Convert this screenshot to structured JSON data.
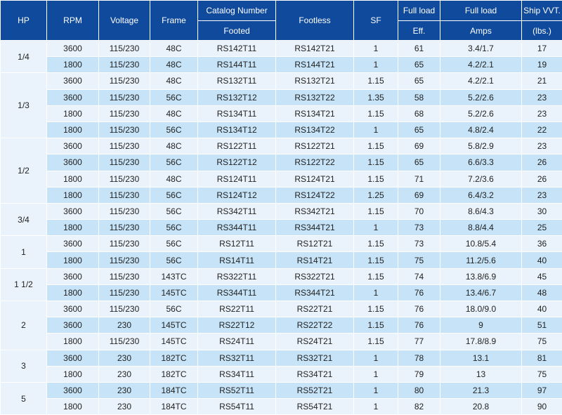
{
  "table": {
    "headers": {
      "hp": "HP",
      "rpm": "RPM",
      "voltage": "Voltage",
      "frame": "Frame",
      "catalog_top": "Catalog Number",
      "catalog_sub": "Footed",
      "footless": "Footless",
      "sf": "SF",
      "eff_top": "Full load",
      "eff_sub": "Eff.",
      "amps_top": "Full load",
      "amps_sub": "Amps",
      "ship_top": "Ship VVT.",
      "ship_sub": "(lbs.)"
    },
    "groups": [
      {
        "hp": "1/4",
        "rows": [
          [
            "3600",
            "115/230",
            "48C",
            "RS142T11",
            "RS142T21",
            "1",
            "61",
            "3.4/1.7",
            "17"
          ],
          [
            "1800",
            "115/230",
            "48C",
            "RS144T11",
            "RS144T21",
            "1",
            "65",
            "4.2/2.1",
            "19"
          ]
        ]
      },
      {
        "hp": "1/3",
        "rows": [
          [
            "3600",
            "115/230",
            "48C",
            "RS132T11",
            "RS132T21",
            "1.15",
            "65",
            "4.2/2.1",
            "21"
          ],
          [
            "3600",
            "115/230",
            "56C",
            "RS132T12",
            "RS132T22",
            "1.35",
            "58",
            "5.2/2.6",
            "23"
          ],
          [
            "1800",
            "115/230",
            "48C",
            "RS134T11",
            "RS134T21",
            "1.15",
            "68",
            "5.2/2.6",
            "23"
          ],
          [
            "1800",
            "115/230",
            "56C",
            "RS134T12",
            "RS134T22",
            "1",
            "65",
            "4.8/2.4",
            "22"
          ]
        ]
      },
      {
        "hp": "1/2",
        "rows": [
          [
            "3600",
            "115/230",
            "48C",
            "RS122T11",
            "RS122T21",
            "1.15",
            "69",
            "5.8/2.9",
            "23"
          ],
          [
            "3600",
            "115/230",
            "56C",
            "RS122T12",
            "RS122T22",
            "1.15",
            "65",
            "6.6/3.3",
            "26"
          ],
          [
            "1800",
            "115/230",
            "48C",
            "RS124T11",
            "RS124T21",
            "1.15",
            "71",
            "7.2/3.6",
            "26"
          ],
          [
            "1800",
            "115/230",
            "56C",
            "RS124T12",
            "RS124T22",
            "1.25",
            "69",
            "6.4/3.2",
            "23"
          ]
        ]
      },
      {
        "hp": "3/4",
        "rows": [
          [
            "3600",
            "115/230",
            "56C",
            "RS342T11",
            "RS342T21",
            "1.15",
            "70",
            "8.6/4.3",
            "30"
          ],
          [
            "1800",
            "115/230",
            "56C",
            "RS344T11",
            "RS344T21",
            "1",
            "73",
            "8.8/4.4",
            "25"
          ]
        ]
      },
      {
        "hp": "1",
        "rows": [
          [
            "3600",
            "115/230",
            "56C",
            "RS12T11",
            "RS12T21",
            "1.15",
            "73",
            "10.8/5.4",
            "36"
          ],
          [
            "1800",
            "115/230",
            "56C",
            "RS14T11",
            "RS14T21",
            "1.15",
            "75",
            "11.2/5.6",
            "40"
          ]
        ]
      },
      {
        "hp": "1 1/2",
        "rows": [
          [
            "3600",
            "115/230",
            "143TC",
            "RS322T11",
            "RS322T21",
            "1.15",
            "74",
            "13.8/6.9",
            "45"
          ],
          [
            "1800",
            "115/230",
            "145TC",
            "RS344T11",
            "RS344T21",
            "1",
            "76",
            "13.4/6.7",
            "48"
          ]
        ]
      },
      {
        "hp": "2",
        "rows": [
          [
            "3600",
            "115/230",
            "56C",
            "RS22T11",
            "RS22T21",
            "1.15",
            "76",
            "18.0/9.0",
            "40"
          ],
          [
            "3600",
            "230",
            "145TC",
            "RS22T12",
            "RS22T22",
            "1.15",
            "76",
            "9",
            "51"
          ],
          [
            "1800",
            "115/230",
            "145TC",
            "RS24T11",
            "RS24T21",
            "1.15",
            "77",
            "17.8/8.9",
            "75"
          ]
        ]
      },
      {
        "hp": "3",
        "rows": [
          [
            "3600",
            "230",
            "182TC",
            "RS32T11",
            "RS32T21",
            "1",
            "78",
            "13.1",
            "81"
          ],
          [
            "1800",
            "230",
            "182TC",
            "RS34T11",
            "RS34T21",
            "1",
            "79",
            "13",
            "75"
          ]
        ]
      },
      {
        "hp": "5",
        "rows": [
          [
            "3600",
            "230",
            "184TC",
            "RS52T11",
            "RS52T21",
            "1",
            "80",
            "21.3",
            "97"
          ],
          [
            "1800",
            "230",
            "184TC",
            "RS54T11",
            "RS54T21",
            "1",
            "82",
            "20.8",
            "90"
          ]
        ]
      }
    ]
  }
}
